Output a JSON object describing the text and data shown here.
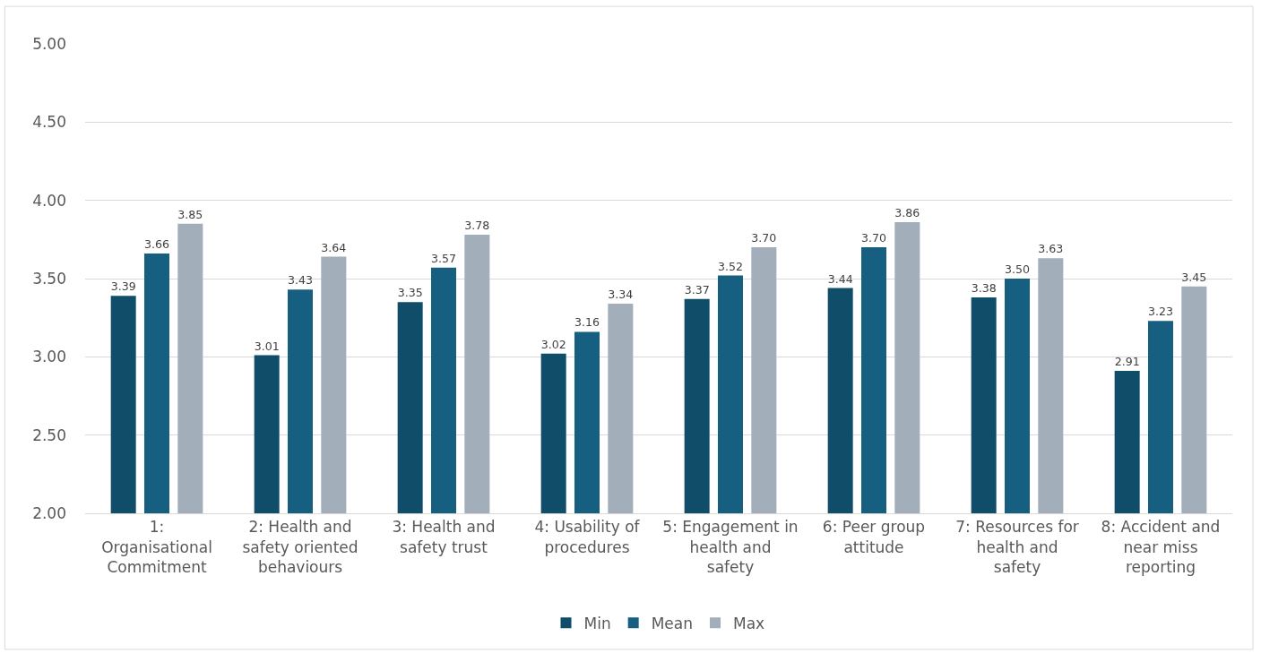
{
  "chart_data": {
    "type": "bar",
    "categories": [
      "1: Organisational Commitment",
      "2: Health and safety oriented behaviours",
      "3: Health and safety trust",
      "4: Usability of procedures",
      "5: Engagement in health and safety",
      "6: Peer group attitude",
      "7: Resources for health and safety",
      "8: Accident and near miss reporting"
    ],
    "series": [
      {
        "name": "Min",
        "color": "#0f4d69",
        "values": [
          3.39,
          3.01,
          3.35,
          3.02,
          3.37,
          3.44,
          3.38,
          2.91
        ],
        "value_labels": [
          "3.39",
          "3.01",
          "3.35",
          "3.02",
          "3.37",
          "3.44",
          "3.38",
          "2.91"
        ]
      },
      {
        "name": "Mean",
        "color": "#175f80",
        "values": [
          3.66,
          3.43,
          3.57,
          3.16,
          3.52,
          3.7,
          3.5,
          3.23
        ],
        "value_labels": [
          "3.66",
          "3.43",
          "3.57",
          "3.16",
          "3.52",
          "3.70",
          "3.50",
          "3.23"
        ]
      },
      {
        "name": "Max",
        "color": "#a2aeba",
        "values": [
          3.85,
          3.64,
          3.78,
          3.34,
          3.7,
          3.86,
          3.63,
          3.45
        ],
        "value_labels": [
          "3.85",
          "3.64",
          "3.78",
          "3.34",
          "3.70",
          "3.86",
          "3.63",
          "3.45"
        ]
      }
    ],
    "ylim": [
      2.0,
      5.0
    ],
    "yticks": [
      {
        "value": 2.0,
        "label": "2.00"
      },
      {
        "value": 2.5,
        "label": "2.50"
      },
      {
        "value": 3.0,
        "label": "3.00"
      },
      {
        "value": 3.5,
        "label": "3.50"
      },
      {
        "value": 4.0,
        "label": "4.00"
      },
      {
        "value": 4.5,
        "label": "4.50"
      },
      {
        "value": 5.0,
        "label": "5.00"
      }
    ],
    "grid": "y",
    "legend": "bottom"
  }
}
